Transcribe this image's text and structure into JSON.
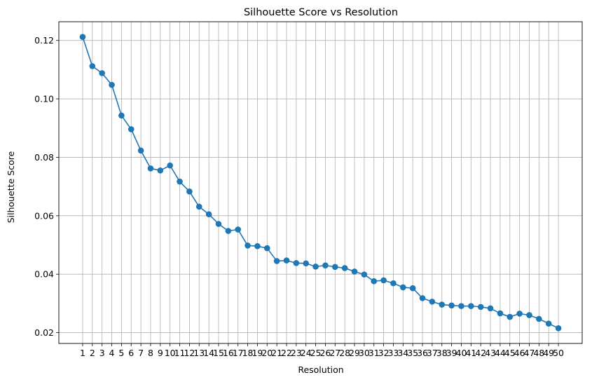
{
  "chart_data": {
    "type": "line",
    "title": "Silhouette Score vs Resolution",
    "xlabel": "Resolution",
    "ylabel": "Silhouette Score",
    "x": [
      1,
      2,
      3,
      4,
      5,
      6,
      7,
      8,
      9,
      10,
      11,
      12,
      13,
      14,
      15,
      16,
      17,
      18,
      19,
      20,
      21,
      22,
      23,
      24,
      25,
      26,
      27,
      28,
      29,
      30,
      31,
      32,
      33,
      34,
      35,
      36,
      37,
      38,
      39,
      40,
      41,
      42,
      43,
      44,
      45,
      46,
      47,
      48,
      49,
      50
    ],
    "xticks": [
      "1",
      "2",
      "3",
      "4",
      "5",
      "6",
      "7",
      "8",
      "9",
      "10",
      "11",
      "12",
      "13",
      "14",
      "15",
      "16",
      "17",
      "18",
      "19",
      "20",
      "21",
      "22",
      "23",
      "24",
      "25",
      "26",
      "27",
      "28",
      "29",
      "30",
      "31",
      "32",
      "33",
      "34",
      "35",
      "36",
      "37",
      "38",
      "39",
      "40",
      "41",
      "42",
      "43",
      "44",
      "45",
      "46",
      "47",
      "48",
      "49",
      "50"
    ],
    "yticks": [
      "0.02",
      "0.04",
      "0.06",
      "0.08",
      "0.10",
      "0.12"
    ],
    "ytick_values": [
      0.02,
      0.04,
      0.06,
      0.08,
      0.1,
      0.12
    ],
    "series": [
      {
        "values": [
          0.1212,
          0.1112,
          0.1088,
          0.1048,
          0.0943,
          0.0896,
          0.0823,
          0.0762,
          0.0755,
          0.0772,
          0.0717,
          0.0683,
          0.0631,
          0.0605,
          0.0572,
          0.0548,
          0.0553,
          0.0498,
          0.0496,
          0.0489,
          0.0445,
          0.0447,
          0.0438,
          0.0437,
          0.0426,
          0.043,
          0.0425,
          0.0421,
          0.0409,
          0.0399,
          0.0376,
          0.0379,
          0.0369,
          0.0355,
          0.0352,
          0.0318,
          0.0306,
          0.0296,
          0.0293,
          0.0291,
          0.0291,
          0.0288,
          0.0283,
          0.0266,
          0.0254,
          0.0265,
          0.026,
          0.0247,
          0.0231,
          0.0215
        ],
        "color": "#1f77b4",
        "marker": "circle"
      }
    ],
    "xlim": [
      -1.45,
      52.45
    ],
    "ylim": [
      0.0163,
      0.1264
    ],
    "grid": true,
    "legend": "none"
  }
}
